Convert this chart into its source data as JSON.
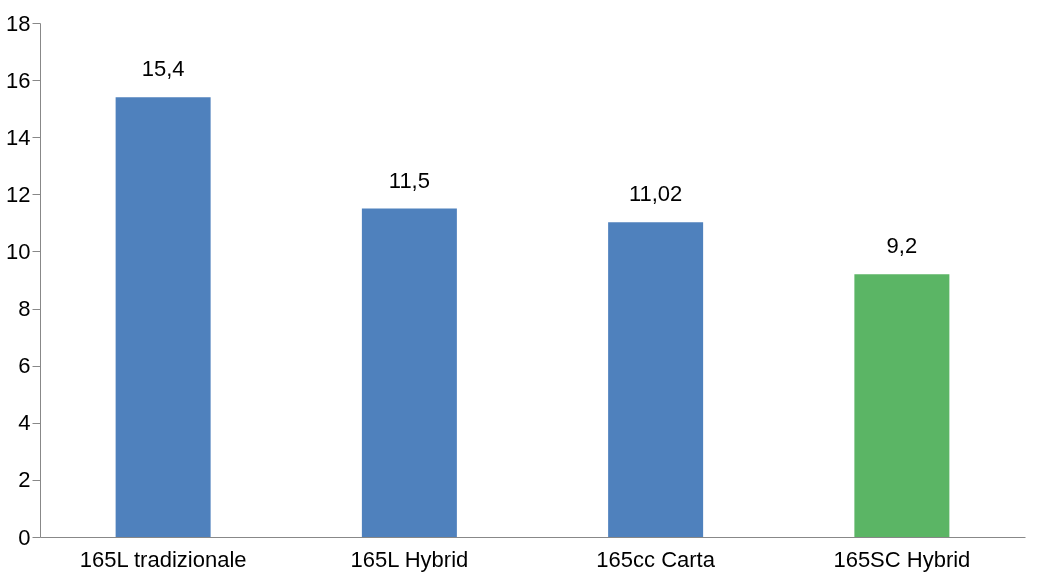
{
  "chart_data": {
    "type": "bar",
    "categories": [
      "165L tradizionale",
      "165L Hybrid",
      "165cc Carta",
      "165SC Hybrid"
    ],
    "values": [
      15.4,
      11.5,
      11.02,
      9.2
    ],
    "colors": [
      "#4f81bd",
      "#4f81bd",
      "#4f81bd",
      "#5bb565"
    ],
    "value_labels": [
      "15,4",
      "11,5",
      "11,02",
      "9,2"
    ],
    "ylim": [
      0,
      18
    ],
    "yticks": [
      0,
      2,
      4,
      6,
      8,
      10,
      12,
      14,
      16,
      18
    ],
    "grid": false
  }
}
